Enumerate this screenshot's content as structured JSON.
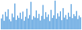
{
  "chart_data": {
    "type": "bar",
    "categories": [
      null,
      null,
      null,
      null,
      null,
      null,
      null,
      null,
      null,
      null,
      null,
      null,
      null,
      null,
      null,
      null,
      null,
      null,
      null,
      null,
      null,
      null,
      null,
      null,
      null,
      null,
      null,
      null,
      null,
      null,
      null,
      null,
      null,
      null,
      null,
      null,
      null,
      null,
      null,
      null,
      null,
      null,
      null,
      null,
      null,
      null,
      null,
      null,
      null,
      null,
      null,
      null,
      null,
      null,
      null,
      null,
      null,
      null,
      null,
      null
    ],
    "values": [
      38,
      52,
      30,
      61,
      45,
      70,
      35,
      28,
      55,
      42,
      90,
      33,
      48,
      40,
      58,
      36,
      62,
      30,
      44,
      72,
      38,
      50,
      96,
      34,
      46,
      41,
      66,
      39,
      54,
      31,
      47,
      85,
      36,
      60,
      43,
      52,
      29,
      68,
      40,
      49,
      100,
      37,
      56,
      45,
      63,
      32,
      74,
      41,
      50,
      35,
      58,
      44,
      88,
      39,
      53,
      46,
      64,
      36,
      48,
      42
    ],
    "color": "#3a8fd9",
    "ylim": [
      0,
      100
    ],
    "tick_labels": false
  }
}
